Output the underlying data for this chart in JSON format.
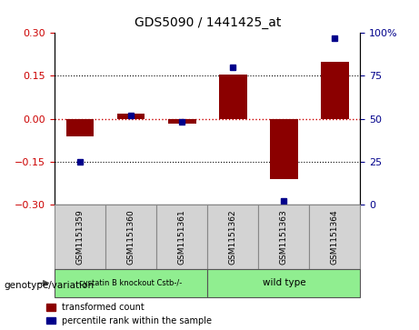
{
  "title": "GDS5090 / 1441425_at",
  "samples": [
    "GSM1151359",
    "GSM1151360",
    "GSM1151361",
    "GSM1151362",
    "GSM1151363",
    "GSM1151364"
  ],
  "red_bars": [
    -0.062,
    0.018,
    -0.018,
    0.155,
    -0.21,
    0.2
  ],
  "blue_dots": [
    25,
    52,
    48,
    80,
    2,
    97
  ],
  "ylim_left": [
    -0.3,
    0.3
  ],
  "ylim_right": [
    0,
    100
  ],
  "yticks_left": [
    -0.3,
    -0.15,
    0,
    0.15,
    0.3
  ],
  "yticks_right": [
    0,
    25,
    50,
    75,
    100
  ],
  "group1_label": "cystatin B knockout Cstb-/-",
  "group2_label": "wild type",
  "group_label": "genotype/variation",
  "legend_red": "transformed count",
  "legend_blue": "percentile rank within the sample",
  "bar_color": "#8B0000",
  "dot_color": "#00008B",
  "hline_color": "#CC0000",
  "dotted_color": "#000000",
  "bar_width": 0.55,
  "sample_box_color": "#d3d3d3",
  "group_color": "#90EE90",
  "background_color": "#ffffff"
}
